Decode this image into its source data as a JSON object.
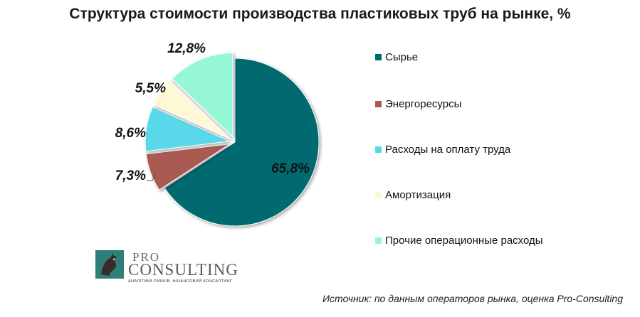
{
  "chart_data": {
    "type": "pie",
    "title": "Структура стоимости производства пластиковых труб на рынке, %",
    "categories": [
      "Сырье",
      "Энергоресурсы",
      "Расходы на оплату труда",
      "Амортизация",
      "Прочие операционные расходы"
    ],
    "values": [
      65.8,
      7.3,
      8.6,
      5.5,
      12.8
    ],
    "data_labels": [
      "65,8%",
      "7,3%",
      "8,6%",
      "5,5%",
      "12,8%"
    ],
    "colors": [
      "#006B6F",
      "#A85A52",
      "#58D8E8",
      "#FFF8D6",
      "#96F7D6"
    ],
    "exploded": true,
    "legend_position": "right"
  },
  "logo": {
    "pro": "PRO",
    "consulting": "CONSULTING",
    "tagline": "АНАЛІТИКА РИНКІВ. ФІНАНСОВИЙ КОНСАЛТИНГ"
  },
  "source": "Источник: по данным операторов рынка, оценка Pro-Consulting"
}
